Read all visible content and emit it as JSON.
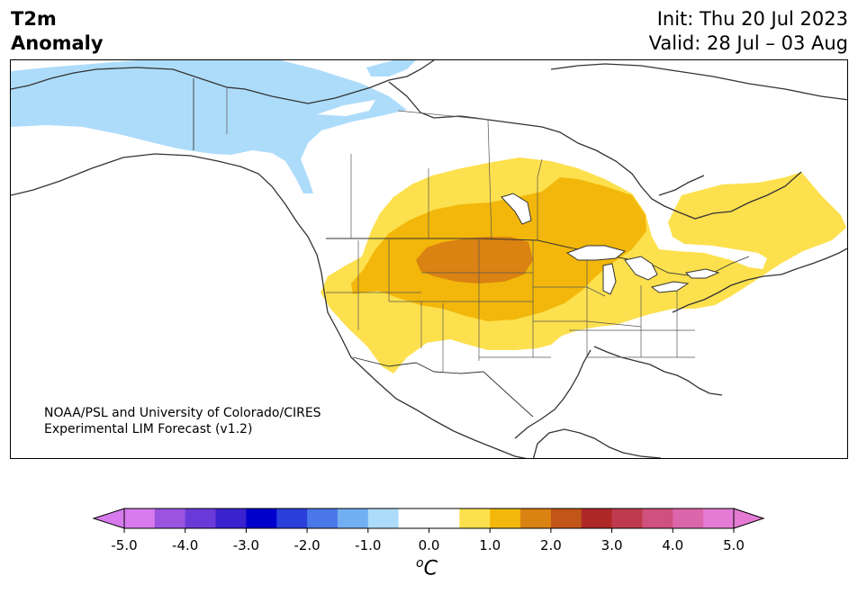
{
  "header": {
    "title_line1": "T2m",
    "title_line2": "Anomaly",
    "init": "Init: Thu 20 Jul 2023",
    "valid": "Valid: 28 Jul – 03 Aug"
  },
  "credit": {
    "line1": "NOAA/PSL and University of Colorado/CIRES",
    "line2": "Experimental LIM Forecast (v1.2)"
  },
  "colorbar": {
    "unit_base": "C",
    "unit_sup": "o",
    "tick_labels": [
      "-5.0",
      "-4.0",
      "-3.0",
      "-2.0",
      "-1.0",
      "0.0",
      "1.0",
      "2.0",
      "3.0",
      "4.0",
      "5.0"
    ],
    "colors": [
      "#d77aed",
      "#9a54e0",
      "#6a3ad9",
      "#3a22cf",
      "#0000cd",
      "#2a3fdc",
      "#4a78e8",
      "#72aff2",
      "#addcfb",
      "#ffffff",
      "#ffffff",
      "#fde04d",
      "#f2b70a",
      "#da8212",
      "#c25518",
      "#ae2827",
      "#c03a4e",
      "#cf517e",
      "#dc66ab",
      "#e57bd5"
    ],
    "under_color": "#d77aed",
    "over_color": "#e57bd5"
  },
  "map_layers": {
    "cool_anomaly_color": "#addcfb",
    "warm_1_color": "#fde04d",
    "warm_2_color": "#f2b70a",
    "warm_3_color": "#da8212"
  }
}
